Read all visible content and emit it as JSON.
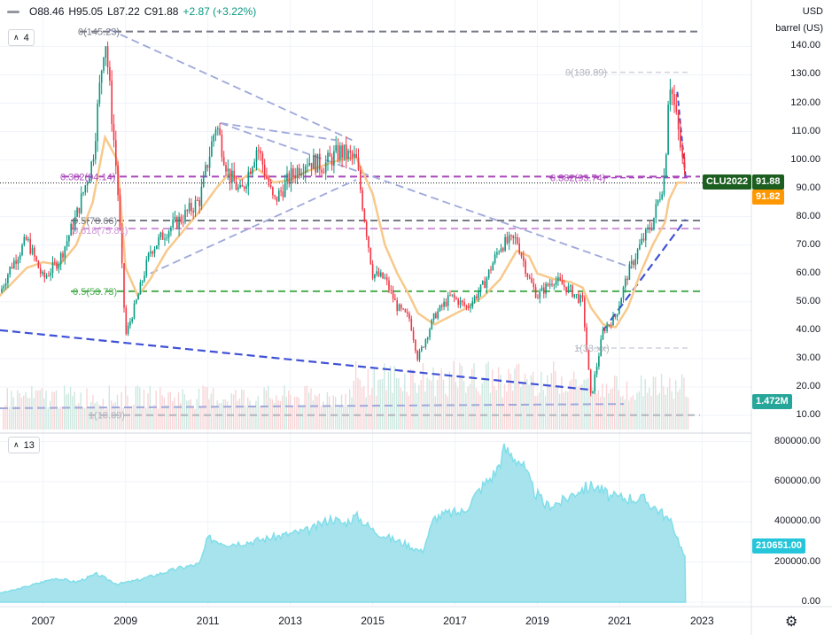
{
  "header": {
    "open": "O88.46",
    "high": "H95.05",
    "low": "L87.22",
    "close": "C91.88",
    "change": "+2.87 (+3.22%)"
  },
  "price_pane": {
    "indicator_count": "4",
    "currency": "USD",
    "unit": "barrel (US)"
  },
  "volume_pane": {
    "indicator_count": "13"
  },
  "price_axis": {
    "ticks": [
      "140.00",
      "130.00",
      "120.00",
      "110.00",
      "100.00",
      "90.00",
      "80.00",
      "70.00",
      "60.00",
      "50.00",
      "40.00",
      "30.00",
      "20.00",
      "10.00"
    ],
    "tick_values": [
      140,
      130,
      120,
      110,
      100,
      90,
      80,
      70,
      60,
      50,
      40,
      30,
      20,
      10
    ]
  },
  "volume_axis": {
    "ticks": [
      "800000.00",
      "600000.00",
      "400000.00",
      "200000.00",
      "0.00"
    ],
    "tick_values": [
      800000,
      600000,
      400000,
      200000,
      0
    ]
  },
  "time_axis": {
    "ticks": [
      "2007",
      "2009",
      "2011",
      "2013",
      "2015",
      "2017",
      "2019",
      "2021",
      "2023"
    ]
  },
  "badges": {
    "symbol": "CLU2022",
    "last_price": "91.88",
    "ma_value": "91.82",
    "volume_value": "1.472M",
    "oi_value": "210651.00"
  },
  "fib_labels": {
    "top_left": "0(145.23)",
    "left_0382": "0.382(94.14)",
    "left_05": "0.5(78.66)",
    "left_0618": "0.618(75.81)",
    "left_05_low": "0.5(53.73)",
    "left_1": "1(10.09)",
    "right_0": "0(130.89)",
    "right_0382": "0.382(93.74)",
    "right_1": "1(33.xx)"
  },
  "colors": {
    "up": "#089981",
    "down": "#f23645",
    "ma": "#f7c98b",
    "fib_purple": "#ab47bc",
    "fib_gray": "#787b86",
    "fib_green": "#4caf50",
    "trend_blue": "#3f51d6",
    "trend_light": "#9fa8da",
    "oi_fill": "#a7e3ec",
    "oi_line": "#80deea",
    "symbol_badge": "#1b5e20",
    "ma_badge": "#ff9800",
    "vol_badge": "#26a69a",
    "oi_badge": "#26c6da"
  },
  "chart_data": [
    {
      "type": "line",
      "title": "CLU2022",
      "xlabel": "",
      "ylabel": "",
      "ylim": [
        5,
        147
      ],
      "x": [
        2005.8,
        2006.2,
        2006.6,
        2007.0,
        2007.4,
        2007.8,
        2008.2,
        2008.5,
        2008.8,
        2009.0,
        2009.3,
        2009.6,
        2010.0,
        2010.4,
        2010.8,
        2011.2,
        2011.5,
        2011.8,
        2012.2,
        2012.6,
        2013.0,
        2013.4,
        2013.8,
        2014.2,
        2014.6,
        2015.0,
        2015.3,
        2015.6,
        2015.9,
        2016.1,
        2016.5,
        2016.9,
        2017.3,
        2017.7,
        2018.1,
        2018.5,
        2018.8,
        2019.0,
        2019.4,
        2019.8,
        2020.1,
        2020.3,
        2020.6,
        2020.9,
        2021.2,
        2021.5,
        2021.8,
        2022.1,
        2022.2,
        2022.4,
        2022.6
      ],
      "series": [
        {
          "name": "price",
          "values": [
            48,
            62,
            72,
            58,
            65,
            80,
            100,
            145,
            92,
            38,
            52,
            68,
            75,
            80,
            86,
            113,
            95,
            88,
            105,
            85,
            94,
            100,
            98,
            103,
            100,
            60,
            58,
            48,
            44,
            30,
            45,
            52,
            48,
            56,
            70,
            72,
            58,
            52,
            58,
            54,
            50,
            16,
            40,
            45,
            60,
            70,
            78,
            95,
            130,
            112,
            92
          ]
        },
        {
          "name": "ma",
          "values": [
            50,
            56,
            62,
            64,
            63,
            70,
            85,
            108,
            100,
            62,
            52,
            58,
            68,
            75,
            82,
            90,
            95,
            93,
            97,
            92,
            93,
            96,
            98,
            100,
            101,
            88,
            70,
            60,
            52,
            46,
            42,
            45,
            48,
            52,
            58,
            68,
            66,
            60,
            58,
            57,
            55,
            48,
            42,
            41,
            48,
            60,
            70,
            78,
            86,
            92,
            92
          ]
        }
      ]
    },
    {
      "type": "area",
      "title": "",
      "xlabel": "",
      "ylabel": "",
      "ylim": [
        0,
        800000
      ],
      "x": [
        2005.8,
        2006.3,
        2006.8,
        2007.3,
        2007.8,
        2008.3,
        2008.8,
        2009.3,
        2009.8,
        2010.3,
        2010.8,
        2011.0,
        2011.5,
        2012.0,
        2012.5,
        2013.0,
        2013.5,
        2014.0,
        2014.3,
        2014.6,
        2015.0,
        2015.4,
        2015.8,
        2016.2,
        2016.5,
        2016.8,
        2017.2,
        2017.6,
        2018.0,
        2018.2,
        2018.6,
        2018.9,
        2019.2,
        2019.6,
        2020.0,
        2020.4,
        2020.8,
        2021.2,
        2021.6,
        2022.0,
        2022.3,
        2022.6
      ],
      "series": [
        {
          "name": "open_interest",
          "values": [
            40000,
            60000,
            90000,
            120000,
            100000,
            140000,
            90000,
            110000,
            140000,
            170000,
            190000,
            320000,
            290000,
            300000,
            320000,
            340000,
            360000,
            420000,
            390000,
            430000,
            360000,
            320000,
            290000,
            250000,
            420000,
            440000,
            450000,
            560000,
            650000,
            760000,
            700000,
            560000,
            480000,
            500000,
            560000,
            580000,
            520000,
            520000,
            510000,
            450000,
            380000,
            210651
          ]
        }
      ]
    }
  ]
}
